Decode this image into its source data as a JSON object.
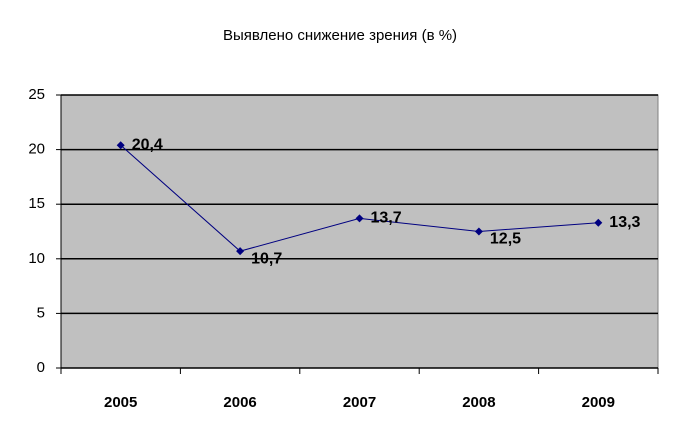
{
  "chart_data": {
    "type": "line",
    "title": "Выявлено снижение зрения (в %)",
    "categories": [
      "2005",
      "2006",
      "2007",
      "2008",
      "2009"
    ],
    "values": [
      20.4,
      10.7,
      13.7,
      12.5,
      13.3
    ],
    "value_labels": [
      "20,4",
      "10,7",
      "13,7",
      "12,5",
      "13,3"
    ],
    "color": "#000080",
    "ylim": [
      0,
      25
    ],
    "yticks": [
      0,
      5,
      10,
      15,
      20,
      25
    ],
    "grid": true
  }
}
